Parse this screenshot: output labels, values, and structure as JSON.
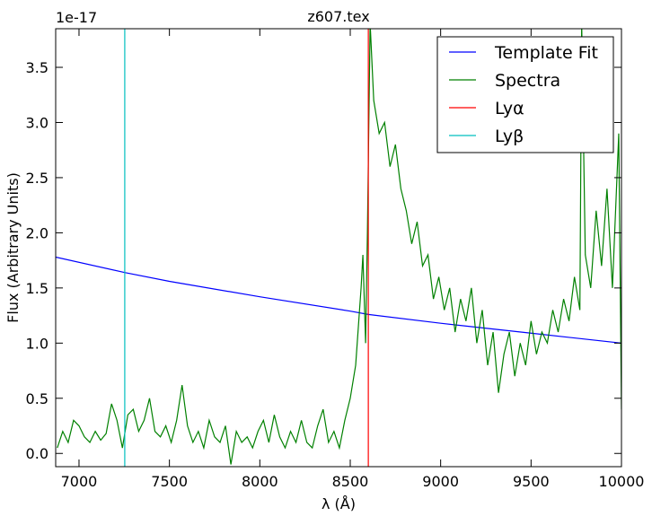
{
  "chart_data": {
    "type": "line",
    "title": "z607.tex",
    "x_label": "λ (Å)",
    "y_label": "Flux (Arbitrary Units)",
    "y_offset_label": "1e-17",
    "xlim": [
      6871,
      10000
    ],
    "ylim": [
      -0.12,
      3.85
    ],
    "xticks": [
      7000,
      7500,
      8000,
      8500,
      9000,
      9500,
      10000
    ],
    "yticks": [
      {
        "value": 0,
        "label": "0.0"
      },
      0.5,
      {
        "value": 1,
        "label": "1.0"
      },
      1.5,
      {
        "value": 2,
        "label": "2.0"
      },
      2.5,
      {
        "value": 3,
        "label": "3.0"
      },
      3.5
    ],
    "legend": "upper right",
    "series": [
      {
        "name": "Template Fit",
        "color": "#0000ff",
        "x": [
          6871,
          7253,
          7500,
          8000,
          8500,
          8600,
          9000,
          9500,
          10000
        ],
        "values": [
          1.78,
          1.64,
          1.56,
          1.42,
          1.29,
          1.26,
          1.18,
          1.09,
          1.0
        ]
      },
      {
        "name": "Spectra",
        "color": "#008000",
        "x": [
          6880,
          6910,
          6940,
          6970,
          7000,
          7030,
          7060,
          7090,
          7120,
          7150,
          7180,
          7210,
          7240,
          7270,
          7300,
          7330,
          7360,
          7390,
          7420,
          7450,
          7480,
          7510,
          7540,
          7570,
          7600,
          7630,
          7660,
          7690,
          7720,
          7750,
          7780,
          7810,
          7840,
          7870,
          7900,
          7930,
          7960,
          7990,
          8020,
          8050,
          8080,
          8110,
          8140,
          8170,
          8200,
          8230,
          8260,
          8290,
          8320,
          8350,
          8380,
          8410,
          8440,
          8470,
          8500,
          8530,
          8560,
          8570,
          8585,
          8595,
          8610,
          8630,
          8660,
          8690,
          8720,
          8750,
          8780,
          8810,
          8840,
          8870,
          8900,
          8930,
          8960,
          8990,
          9020,
          9050,
          9080,
          9110,
          9140,
          9170,
          9200,
          9230,
          9260,
          9290,
          9320,
          9350,
          9380,
          9410,
          9440,
          9470,
          9500,
          9530,
          9560,
          9590,
          9620,
          9650,
          9680,
          9710,
          9740,
          9770,
          9780,
          9800,
          9830,
          9860,
          9890,
          9920,
          9950,
          9970,
          9985,
          10000
        ],
        "values": [
          0.05,
          0.2,
          0.1,
          0.3,
          0.25,
          0.15,
          0.1,
          0.2,
          0.12,
          0.18,
          0.45,
          0.3,
          0.05,
          0.35,
          0.4,
          0.2,
          0.3,
          0.5,
          0.2,
          0.15,
          0.25,
          0.1,
          0.3,
          0.62,
          0.25,
          0.1,
          0.2,
          0.05,
          0.3,
          0.15,
          0.1,
          0.25,
          -0.1,
          0.2,
          0.1,
          0.15,
          0.05,
          0.2,
          0.3,
          0.1,
          0.35,
          0.15,
          0.05,
          0.2,
          0.1,
          0.3,
          0.1,
          0.05,
          0.25,
          0.4,
          0.1,
          0.2,
          0.05,
          0.3,
          0.5,
          0.8,
          1.5,
          1.8,
          1.0,
          2.0,
          3.9,
          3.2,
          2.9,
          3.0,
          2.6,
          2.8,
          2.4,
          2.2,
          1.9,
          2.1,
          1.7,
          1.8,
          1.4,
          1.6,
          1.3,
          1.5,
          1.1,
          1.4,
          1.2,
          1.5,
          1.0,
          1.3,
          0.8,
          1.1,
          0.55,
          0.9,
          1.1,
          0.7,
          1.0,
          0.8,
          1.2,
          0.9,
          1.1,
          1.0,
          1.3,
          1.1,
          1.4,
          1.2,
          1.6,
          1.3,
          3.9,
          1.8,
          1.5,
          2.2,
          1.7,
          2.4,
          1.5,
          2.3,
          2.9,
          0.4
        ]
      },
      {
        "name": "Lyα",
        "color": "#ff0000",
        "type": "vline",
        "x": 8600
      },
      {
        "name": "Lyβ",
        "color": "#00bfbf",
        "type": "vline",
        "x": 7253
      }
    ]
  }
}
